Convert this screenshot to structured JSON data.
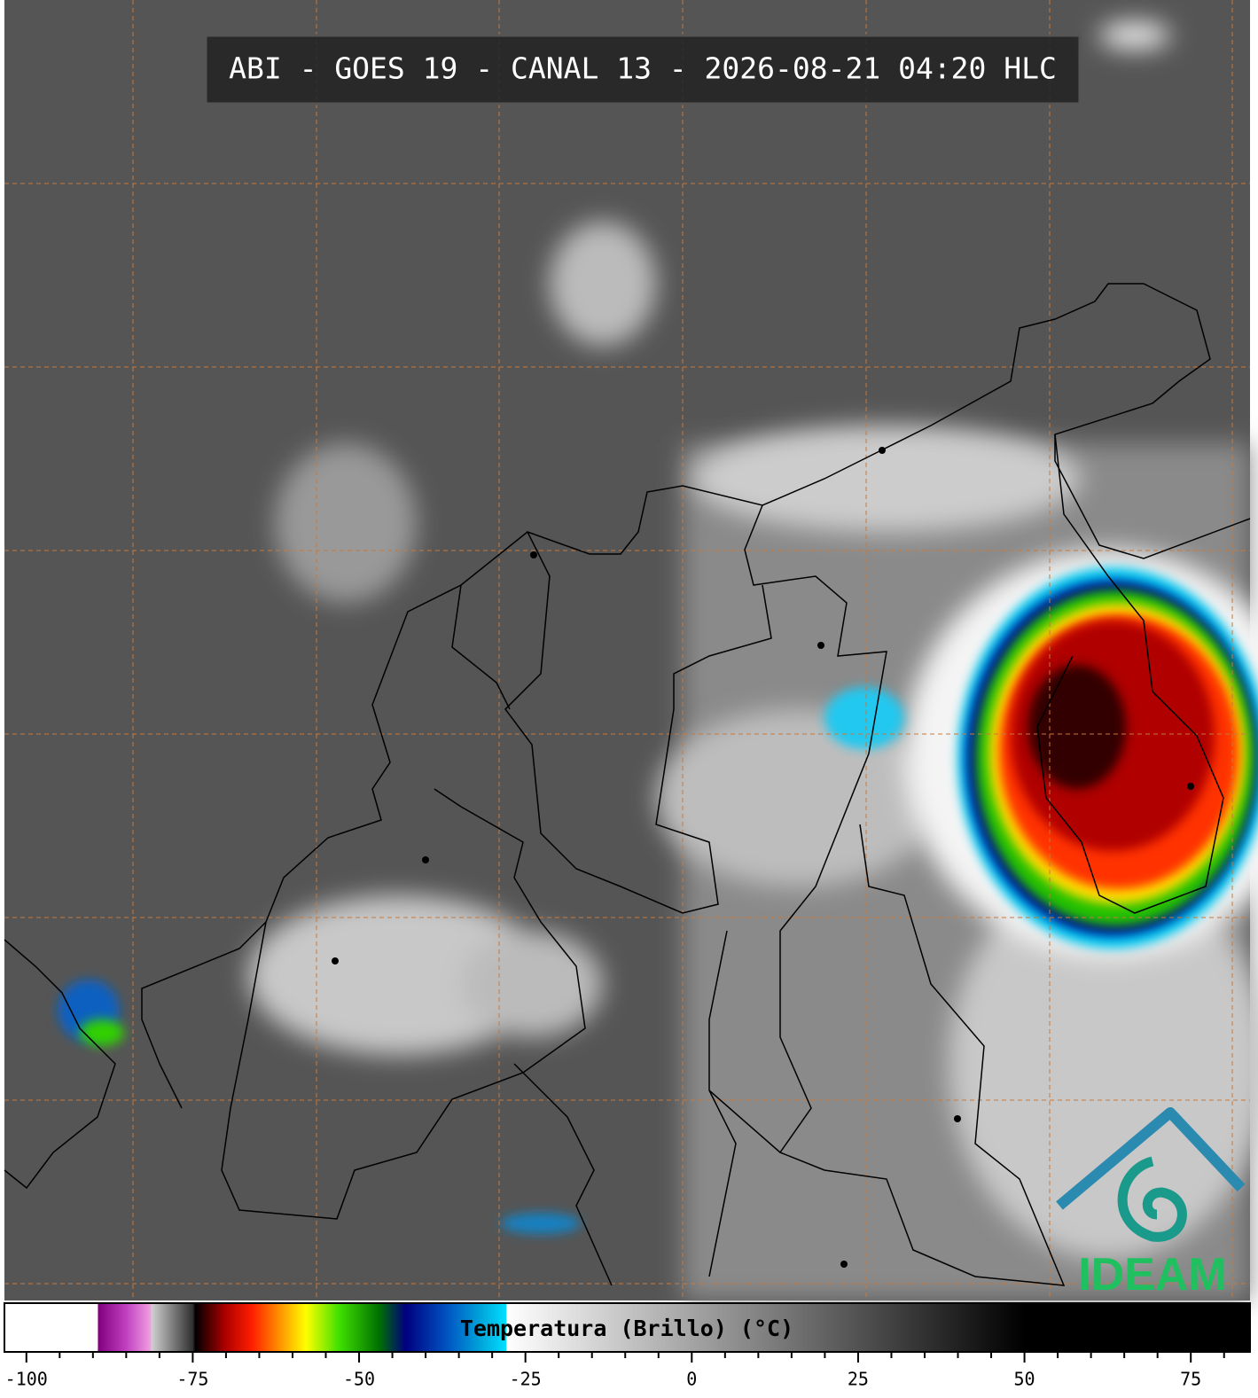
{
  "title": "ABI - GOES 19 - CANAL 13 - 2026-08-21 04:20 HLC",
  "logo": "IDEAM",
  "colorbar": {
    "label": "Temperatura (Brillo) (°C)",
    "xlim": [
      -103.3,
      83.9
    ],
    "xticks": [
      -100,
      -75,
      -50,
      -25,
      0,
      25,
      50,
      75
    ],
    "minor_ticks": [
      -95,
      -90,
      -85,
      -80,
      -70,
      -65,
      -60,
      -55,
      -45,
      -40,
      -35,
      -30,
      -20,
      -15,
      -10,
      -5,
      5,
      10,
      15,
      20,
      30,
      35,
      40,
      45,
      55,
      60,
      65,
      70,
      80
    ],
    "colormap": [
      {
        "value": -103.3,
        "color": "#ffffff"
      },
      {
        "value": -89.3,
        "color": "#ffffff"
      },
      {
        "value": -89.2,
        "color": "#800080"
      },
      {
        "value": -85,
        "color": "#c040c0"
      },
      {
        "value": -81.3,
        "color": "#f0a0e0"
      },
      {
        "value": -81.2,
        "color": "#d0d0d0"
      },
      {
        "value": -75,
        "color": "#303030"
      },
      {
        "value": -74.6,
        "color": "#000000"
      },
      {
        "value": -70,
        "color": "#b00000"
      },
      {
        "value": -66,
        "color": "#ff2000"
      },
      {
        "value": -62,
        "color": "#ff9000"
      },
      {
        "value": -58,
        "color": "#ffff00"
      },
      {
        "value": -53,
        "color": "#40e000"
      },
      {
        "value": -47,
        "color": "#007000"
      },
      {
        "value": -43,
        "color": "#000080"
      },
      {
        "value": -37,
        "color": "#0050c0"
      },
      {
        "value": -31,
        "color": "#00b0e0"
      },
      {
        "value": -27.9,
        "color": "#00e0ff"
      },
      {
        "value": -27.8,
        "color": "#ffffff"
      },
      {
        "value": 50,
        "color": "#000000"
      },
      {
        "value": 83.9,
        "color": "#000000"
      }
    ]
  }
}
